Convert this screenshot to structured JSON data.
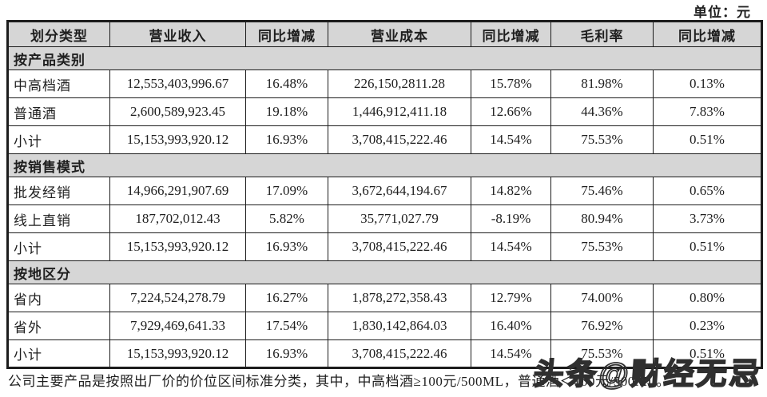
{
  "unit_label": "单位：元",
  "table": {
    "columns": [
      "划分类型",
      "营业收入",
      "同比增减",
      "营业成本",
      "同比增减",
      "毛利率",
      "同比增减"
    ],
    "sections": [
      {
        "header": "按产品类别",
        "rows": [
          [
            "中高档酒",
            "12,553,403,996.67",
            "16.48%",
            "226,150,2811.28",
            "15.78%",
            "81.98%",
            "0.13%"
          ],
          [
            "普通酒",
            "2,600,589,923.45",
            "19.18%",
            "1,446,912,411.18",
            "12.66%",
            "44.36%",
            "7.83%"
          ],
          [
            "小计",
            "15,153,993,920.12",
            "16.93%",
            "3,708,415,222.46",
            "14.54%",
            "75.53%",
            "0.51%"
          ]
        ]
      },
      {
        "header": "按销售模式",
        "rows": [
          [
            "批发经销",
            "14,966,291,907.69",
            "17.09%",
            "3,672,644,194.67",
            "14.82%",
            "75.46%",
            "0.65%"
          ],
          [
            "线上直销",
            "187,702,012.43",
            "5.82%",
            "35,771,027.79",
            "-8.19%",
            "80.94%",
            "3.73%"
          ],
          [
            "小计",
            "15,153,993,920.12",
            "16.93%",
            "3,708,415,222.46",
            "14.54%",
            "75.53%",
            "0.51%"
          ]
        ]
      },
      {
        "header": "按地区分",
        "rows": [
          [
            "省内",
            "7,224,524,278.79",
            "16.27%",
            "1,878,272,358.43",
            "12.79%",
            "74.00%",
            "0.80%"
          ],
          [
            "省外",
            "7,929,469,641.33",
            "17.54%",
            "1,830,142,864.03",
            "16.40%",
            "76.92%",
            "0.23%"
          ],
          [
            "小计",
            "15,153,993,920.12",
            "16.93%",
            "3,708,415,222.46",
            "14.54%",
            "75.53%",
            "0.51%"
          ]
        ]
      }
    ]
  },
  "footnote": "公司主要产品是按照出厂价的价位区间标准分类，其中，中高档酒≥100元/500ML，普通酒＜100元/500ML。",
  "watermark": "头条@财经无忌",
  "colors": {
    "header_bg": "#d6d6d6",
    "border": "#1c1c1c",
    "text": "#1f1f1f"
  }
}
